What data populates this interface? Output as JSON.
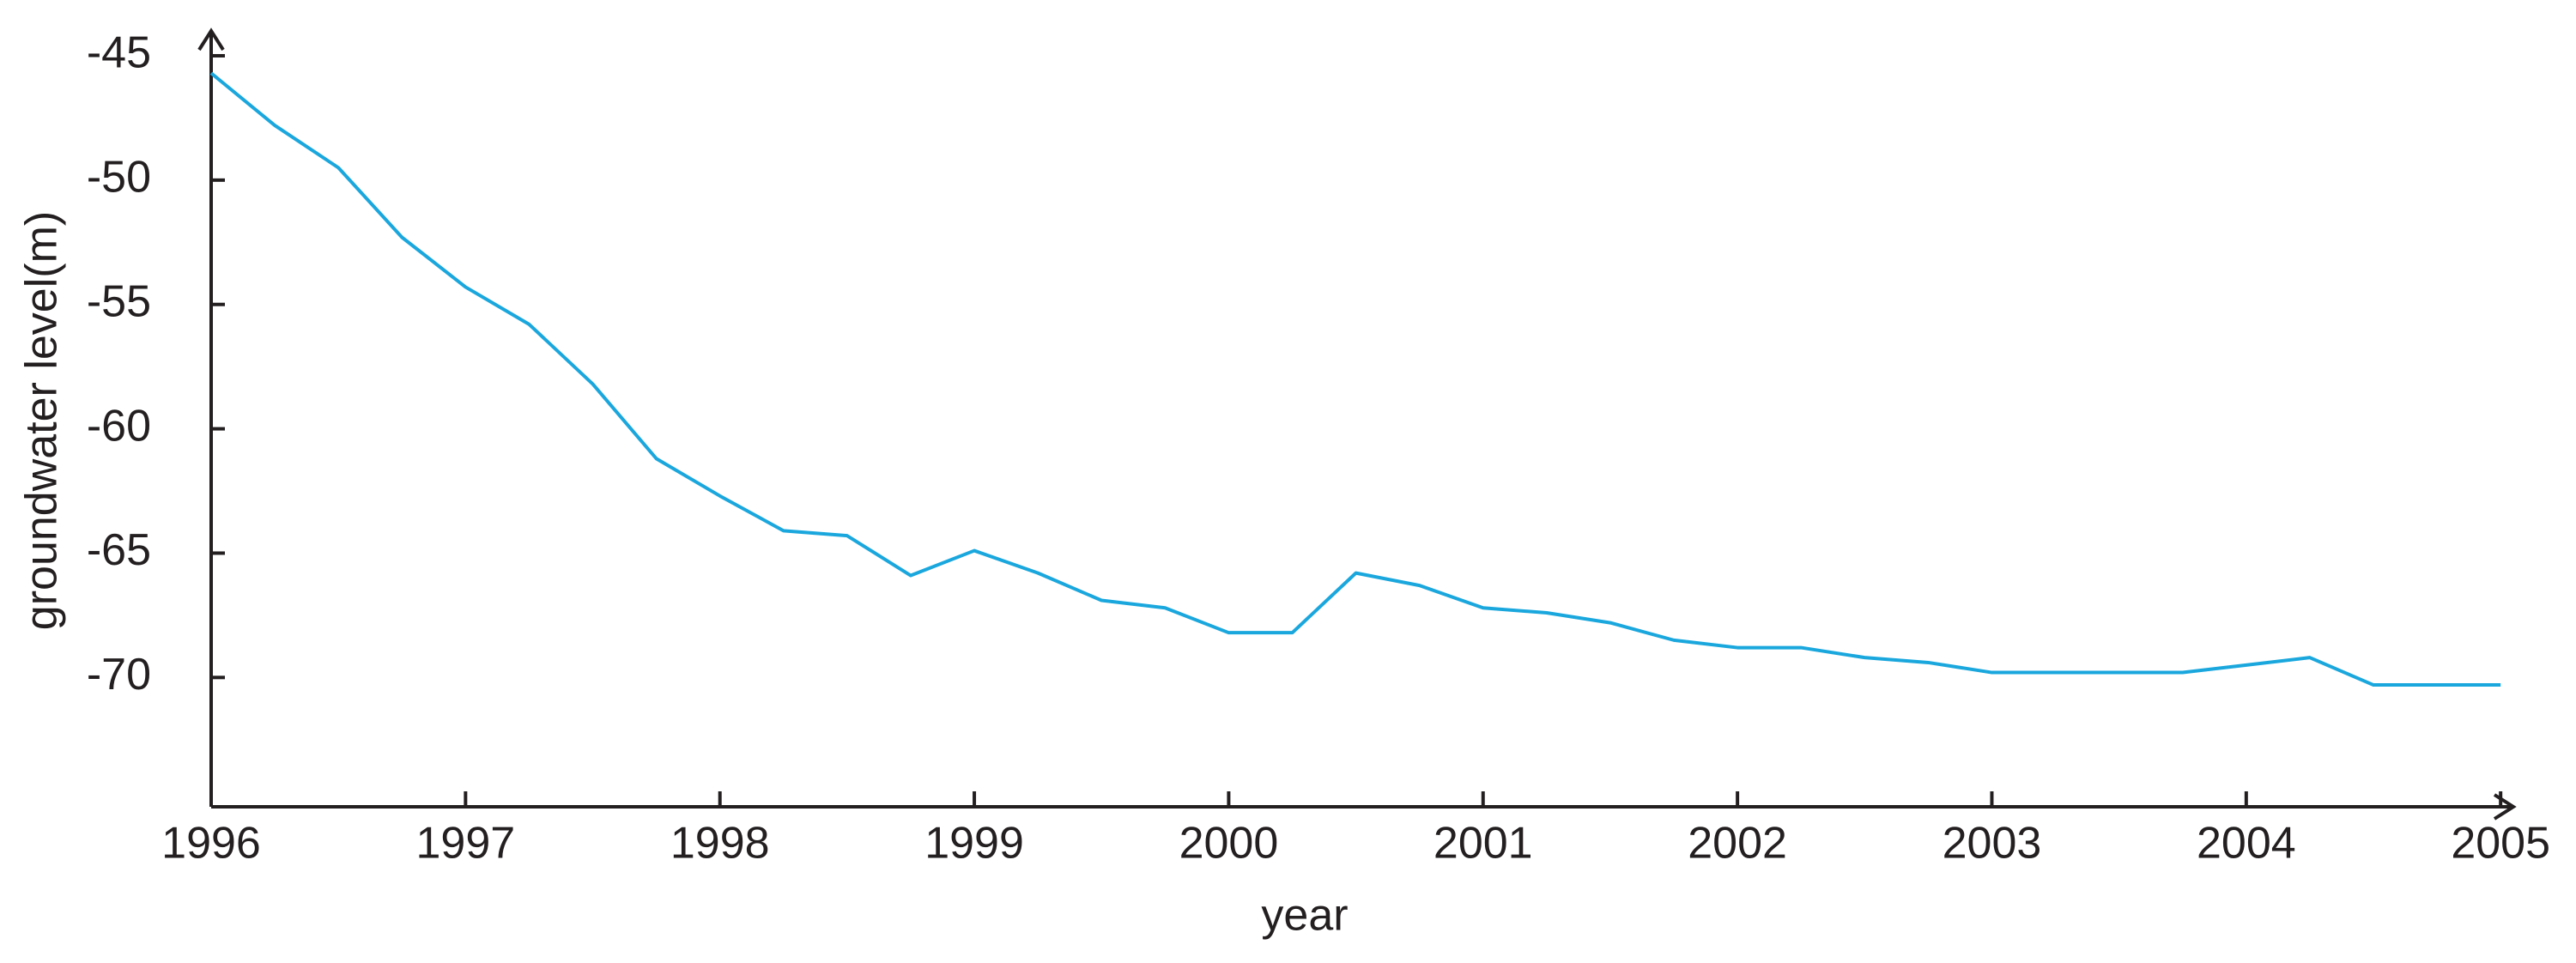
{
  "chart_data": {
    "type": "line",
    "x_label": "year",
    "y_label": "groundwater level(m)",
    "x": [
      1996,
      1996.25,
      1996.5,
      1996.75,
      1997,
      1997.25,
      1997.5,
      1997.75,
      1998,
      1998.25,
      1998.5,
      1998.75,
      1999,
      1999.25,
      1999.5,
      1999.75,
      2000,
      2000.25,
      2000.5,
      2000.75,
      2001,
      2001.25,
      2001.5,
      2001.75,
      2002,
      2002.25,
      2002.5,
      2002.75,
      2003,
      2003.25,
      2003.5,
      2003.75,
      2004,
      2004.25,
      2004.5,
      2004.75,
      2005
    ],
    "series": [
      {
        "color": "#1aa7dd",
        "values": [
          -45.7,
          -47.8,
          -49.5,
          -52.3,
          -54.3,
          -55.8,
          -58.2,
          -61.2,
          -62.7,
          -64.1,
          -64.3,
          -65.9,
          -64.9,
          -65.8,
          -66.9,
          -67.2,
          -68.2,
          -68.2,
          -65.8,
          -66.3,
          -67.2,
          -67.4,
          -67.8,
          -68.5,
          -68.8,
          -68.8,
          -69.2,
          -69.4,
          -69.8,
          -69.8,
          -69.8,
          -69.8,
          -69.5,
          -69.2,
          -70.3,
          -70.3,
          -70.3
        ]
      }
    ],
    "xlim": [
      1996,
      2005.05
    ],
    "ylim": [
      -75.2,
      -44
    ],
    "xticks": [
      1996,
      1997,
      1998,
      1999,
      2000,
      2001,
      2002,
      2003,
      2004,
      2005
    ],
    "yticks": [
      -45,
      -50,
      -55,
      -60,
      -65,
      -70
    ],
    "grid": false
  }
}
